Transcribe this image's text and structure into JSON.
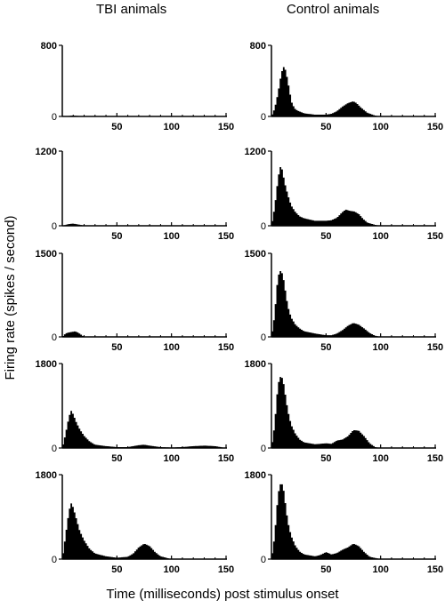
{
  "titles": {
    "left": "TBI animals",
    "right": "Control animals"
  },
  "ylabel": "Firing rate (spikes / second)",
  "xlabel": "Time (milliseconds) post stimulus onset",
  "chart_data": [
    {
      "type": "area",
      "group": "TBI animals",
      "ylim": [
        0,
        800
      ],
      "yticks": [
        0,
        800
      ],
      "xlim": [
        0,
        150
      ],
      "xticks": [
        50,
        100,
        150
      ],
      "x": [
        0,
        5,
        10,
        15,
        20,
        30,
        150
      ],
      "y": [
        0,
        5,
        10,
        5,
        2,
        0,
        0
      ]
    },
    {
      "type": "area",
      "group": "Control animals",
      "ylim": [
        0,
        800
      ],
      "yticks": [
        0,
        800
      ],
      "xlim": [
        0,
        150
      ],
      "xticks": [
        50,
        100,
        150
      ],
      "x": [
        0,
        3,
        6,
        9,
        11,
        13,
        15,
        17,
        19,
        22,
        25,
        30,
        40,
        50,
        55,
        60,
        65,
        70,
        75,
        78,
        82,
        88,
        95,
        100,
        150
      ],
      "y": [
        0,
        90,
        260,
        480,
        560,
        520,
        400,
        260,
        140,
        80,
        60,
        35,
        20,
        20,
        30,
        60,
        110,
        150,
        170,
        150,
        100,
        40,
        10,
        0,
        0
      ]
    },
    {
      "type": "area",
      "group": "TBI animals",
      "ylim": [
        0,
        1200
      ],
      "yticks": [
        0,
        1200
      ],
      "xlim": [
        0,
        150
      ],
      "xticks": [
        50,
        100,
        150
      ],
      "x": [
        0,
        5,
        10,
        15,
        20,
        30,
        150
      ],
      "y": [
        0,
        25,
        35,
        20,
        5,
        0,
        0
      ]
    },
    {
      "type": "area",
      "group": "Control animals",
      "ylim": [
        0,
        1200
      ],
      "yticks": [
        0,
        1200
      ],
      "xlim": [
        0,
        150
      ],
      "xticks": [
        50,
        100,
        150
      ],
      "x": [
        0,
        3,
        6,
        8,
        10,
        12,
        15,
        18,
        22,
        26,
        30,
        40,
        50,
        55,
        60,
        65,
        68,
        72,
        76,
        80,
        84,
        88,
        95,
        100,
        150
      ],
      "y": [
        0,
        300,
        750,
        950,
        900,
        700,
        500,
        330,
        220,
        150,
        120,
        80,
        80,
        90,
        130,
        220,
        260,
        240,
        230,
        190,
        110,
        50,
        15,
        0,
        0
      ]
    },
    {
      "type": "area",
      "group": "TBI animals",
      "ylim": [
        0,
        1500
      ],
      "yticks": [
        0,
        1500
      ],
      "xlim": [
        0,
        150
      ],
      "xticks": [
        50,
        100,
        150
      ],
      "x": [
        0,
        3,
        6,
        9,
        12,
        15,
        18,
        20,
        150
      ],
      "y": [
        0,
        60,
        80,
        90,
        100,
        70,
        30,
        0,
        0
      ]
    },
    {
      "type": "area",
      "group": "Control animals",
      "ylim": [
        0,
        1500
      ],
      "yticks": [
        0,
        1500
      ],
      "xlim": [
        0,
        150
      ],
      "xticks": [
        50,
        100,
        150
      ],
      "x": [
        0,
        3,
        5,
        7,
        9,
        11,
        13,
        15,
        18,
        22,
        26,
        30,
        40,
        50,
        55,
        60,
        65,
        70,
        75,
        80,
        85,
        90,
        95,
        100,
        150
      ],
      "y": [
        0,
        400,
        900,
        1150,
        1200,
        1050,
        800,
        550,
        350,
        220,
        150,
        100,
        60,
        30,
        30,
        60,
        120,
        200,
        250,
        220,
        150,
        70,
        20,
        0,
        0
      ]
    },
    {
      "type": "area",
      "group": "TBI animals",
      "ylim": [
        0,
        1800
      ],
      "yticks": [
        0,
        1800
      ],
      "xlim": [
        0,
        150
      ],
      "xticks": [
        50,
        100,
        150
      ],
      "x": [
        0,
        3,
        6,
        8,
        10,
        13,
        16,
        20,
        25,
        30,
        40,
        50,
        60,
        70,
        75,
        80,
        90,
        100,
        110,
        120,
        130,
        140,
        145,
        150
      ],
      "y": [
        0,
        300,
        650,
        800,
        720,
        540,
        400,
        260,
        140,
        70,
        40,
        20,
        20,
        60,
        70,
        50,
        20,
        10,
        20,
        40,
        50,
        40,
        20,
        0
      ]
    },
    {
      "type": "area",
      "group": "Control animals",
      "ylim": [
        0,
        1800
      ],
      "yticks": [
        0,
        1800
      ],
      "xlim": [
        0,
        150
      ],
      "xticks": [
        50,
        100,
        150
      ],
      "x": [
        0,
        3,
        5,
        7,
        9,
        11,
        13,
        15,
        18,
        22,
        26,
        30,
        40,
        50,
        55,
        60,
        65,
        70,
        75,
        80,
        85,
        90,
        95,
        100,
        150
      ],
      "y": [
        0,
        500,
        1100,
        1450,
        1550,
        1400,
        1100,
        800,
        500,
        300,
        180,
        120,
        80,
        100,
        90,
        160,
        180,
        250,
        380,
        370,
        250,
        100,
        20,
        0,
        0
      ]
    },
    {
      "type": "area",
      "group": "TBI animals",
      "ylim": [
        0,
        1800
      ],
      "yticks": [
        0,
        1800
      ],
      "xlim": [
        0,
        150
      ],
      "xticks": [
        50,
        100,
        150
      ],
      "x": [
        0,
        3,
        6,
        8,
        10,
        13,
        16,
        20,
        25,
        30,
        40,
        50,
        60,
        65,
        70,
        75,
        80,
        85,
        90,
        100,
        150
      ],
      "y": [
        0,
        500,
        1000,
        1200,
        1100,
        850,
        600,
        400,
        220,
        120,
        60,
        30,
        50,
        120,
        250,
        330,
        280,
        150,
        60,
        0,
        0
      ]
    },
    {
      "type": "area",
      "group": "Control animals",
      "ylim": [
        0,
        1800
      ],
      "yticks": [
        0,
        1800
      ],
      "xlim": [
        0,
        150
      ],
      "xticks": [
        50,
        100,
        150
      ],
      "x": [
        0,
        3,
        5,
        7,
        9,
        11,
        13,
        15,
        18,
        22,
        26,
        30,
        40,
        45,
        50,
        55,
        60,
        65,
        70,
        75,
        80,
        85,
        90,
        100,
        150
      ],
      "y": [
        0,
        500,
        1100,
        1500,
        1650,
        1500,
        1150,
        800,
        500,
        280,
        160,
        100,
        60,
        90,
        150,
        100,
        130,
        200,
        250,
        330,
        280,
        150,
        50,
        0,
        0
      ]
    }
  ]
}
